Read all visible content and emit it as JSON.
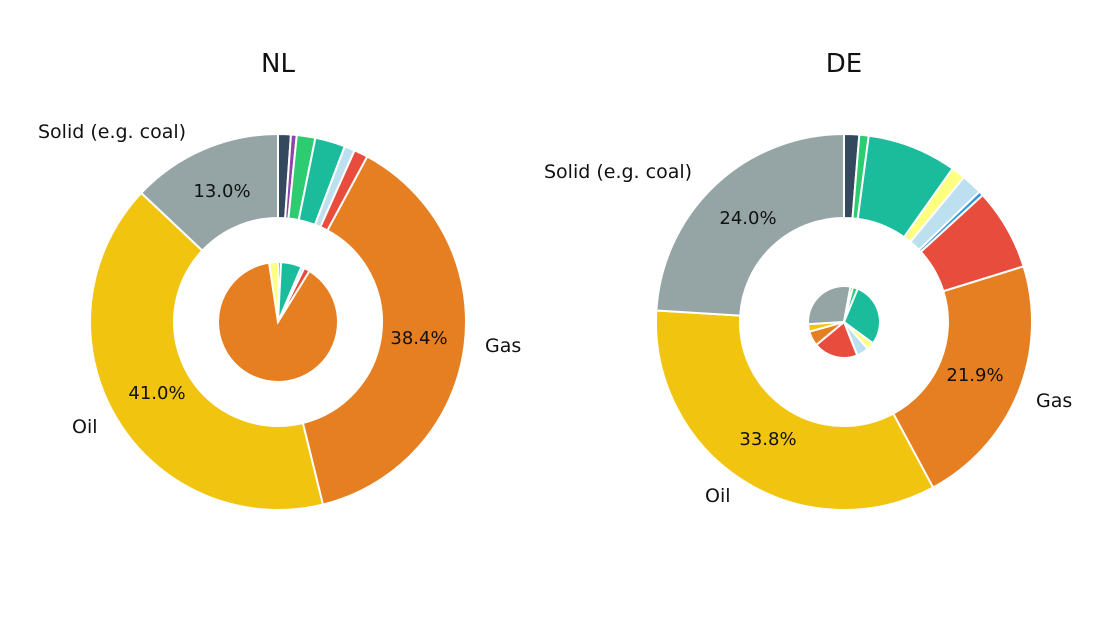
{
  "chart_data": [
    {
      "type": "pie",
      "title": "NL",
      "outer": {
        "categories": [
          "Oil",
          "Solid (e.g. coal)",
          "dark blue",
          "purple",
          "green",
          "teal",
          "light blue",
          "red",
          "Gas"
        ],
        "values": [
          41.0,
          13.0,
          1.1,
          0.5,
          1.6,
          2.6,
          0.9,
          1.2,
          38.4
        ],
        "data_labels": {
          "Oil": "41.0%",
          "Solid (e.g. coal)": "13.0%",
          "Gas": "38.4%"
        },
        "category_labels": [
          "Oil",
          "Solid (e.g. coal)",
          "Gas"
        ]
      },
      "inner": {
        "categories": [
          "yellow",
          "green",
          "teal",
          "light blue",
          "red",
          "orange"
        ],
        "values": [
          2.4,
          0.8,
          5.6,
          0.8,
          1.6,
          88.8
        ]
      }
    },
    {
      "type": "pie",
      "title": "DE",
      "outer": {
        "categories": [
          "Oil",
          "Solid (e.g. coal)",
          "dark blue",
          "green",
          "teal",
          "yellow",
          "light blue",
          "blue",
          "red",
          "Gas"
        ],
        "values": [
          33.8,
          24.0,
          1.3,
          0.8,
          7.7,
          1.2,
          1.8,
          0.4,
          7.0,
          21.9
        ],
        "data_labels": {
          "Oil": "33.8%",
          "Solid (e.g. coal)": "24.0%",
          "Gas": "21.9%"
        },
        "category_labels": [
          "Oil",
          "Solid (e.g. coal)",
          "Gas"
        ]
      },
      "inner": {
        "categories": [
          "grey",
          "dark blue",
          "green",
          "teal",
          "yellow",
          "light blue",
          "red",
          "orange",
          "gold"
        ],
        "values": [
          26.0,
          1.0,
          2.0,
          26.0,
          3.0,
          5.0,
          18.0,
          6.0,
          3.0
        ]
      }
    }
  ],
  "colors": {
    "Oil": "#F1C40F",
    "Gas": "#E67E22",
    "Solid (e.g. coal)": "#95A5A6",
    "dark blue": "#34495E",
    "purple": "#8E44AD",
    "green": "#2ECC71",
    "teal": "#1ABC9C",
    "light blue": "#BDE0F0",
    "blue": "#3498DB",
    "red": "#E74C3C",
    "yellow": "#FFFF80",
    "grey": "#95A5A6",
    "orange": "#E67E22",
    "gold": "#F1C40F"
  }
}
